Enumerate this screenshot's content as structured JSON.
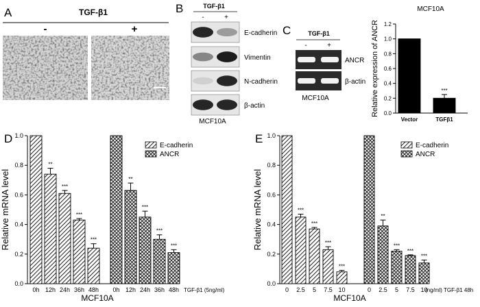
{
  "panels": {
    "A": {
      "letter": "A",
      "treatment": "TGF-β1",
      "minus": "-",
      "plus": "+"
    },
    "B": {
      "letter": "B",
      "treatment": "TGF-β1",
      "minus": "-",
      "plus": "+",
      "bands": [
        "E-cadherin",
        "Vimentin",
        "N-cadherin",
        "β-actin"
      ],
      "caption": "MCF10A"
    },
    "C": {
      "letter": "C",
      "treatment": "TGF-β1",
      "minus": "-",
      "plus": "+",
      "bands": [
        "ANCR",
        "β-actin"
      ],
      "caption": "MCF10A"
    }
  },
  "chart_data": [
    {
      "panel": "C-bar",
      "type": "bar",
      "title": "MCF10A",
      "ylabel": "Relative expression of  ANCR",
      "categories": [
        "Vector",
        "TGFβ1"
      ],
      "values": [
        1.0,
        0.2
      ],
      "errors": [
        0,
        0.05
      ],
      "significance": [
        "",
        "***"
      ],
      "ylim": [
        0,
        1.2
      ],
      "yticks": [
        "0.0",
        "0.2",
        "0.4",
        "0.6",
        "0.8",
        "1.0",
        "1.2"
      ]
    },
    {
      "panel": "D",
      "letter": "D",
      "type": "bar",
      "ylabel": "Relative mRNA level",
      "xlabel": "MCF10A",
      "treatment_note": "TGF-β1 (5ng/ml)",
      "ylim": [
        0,
        1.0
      ],
      "yticks": [
        "0.0",
        "0.2",
        "0.4",
        "0.6",
        "0.8",
        "1.0"
      ],
      "series": [
        {
          "name": "E-cadherin",
          "categories": [
            "0h",
            "12h",
            "24h",
            "36h",
            "48h"
          ],
          "values": [
            1.0,
            0.74,
            0.61,
            0.43,
            0.24
          ],
          "errors": [
            0,
            0.04,
            0.02,
            0.01,
            0.03
          ],
          "significance": [
            "",
            "**",
            "***",
            "***",
            "***"
          ]
        },
        {
          "name": "ANCR",
          "categories": [
            "0h",
            "12h",
            "24h",
            "36h",
            "48h"
          ],
          "values": [
            1.0,
            0.63,
            0.45,
            0.3,
            0.21
          ],
          "errors": [
            0,
            0.05,
            0.04,
            0.03,
            0.02
          ],
          "significance": [
            "",
            "**",
            "***",
            "***",
            "***"
          ]
        }
      ]
    },
    {
      "panel": "E",
      "letter": "E",
      "type": "bar",
      "ylabel": "Relative mRNA level",
      "xlabel": "MCF10A",
      "treatment_note": "(ng/ml) TGF-β1 48h",
      "ylim": [
        0,
        1.0
      ],
      "yticks": [
        "0.0",
        "0.2",
        "0.4",
        "0.6",
        "0.8",
        "1.0"
      ],
      "series": [
        {
          "name": "E-cadherin",
          "categories": [
            "0",
            "2.5",
            "5",
            "7.5",
            "10"
          ],
          "values": [
            1.0,
            0.45,
            0.37,
            0.23,
            0.08
          ],
          "errors": [
            0,
            0.02,
            0.01,
            0.02,
            0.01
          ],
          "significance": [
            "",
            "***",
            "***",
            "***",
            "***"
          ]
        },
        {
          "name": "ANCR",
          "categories": [
            "0",
            "2.5",
            "5",
            "7.5",
            "10"
          ],
          "values": [
            1.0,
            0.39,
            0.22,
            0.19,
            0.14
          ],
          "errors": [
            0,
            0.04,
            0.01,
            0.005,
            0.02
          ],
          "significance": [
            "",
            "**",
            "***",
            "***",
            "***"
          ]
        }
      ]
    }
  ]
}
